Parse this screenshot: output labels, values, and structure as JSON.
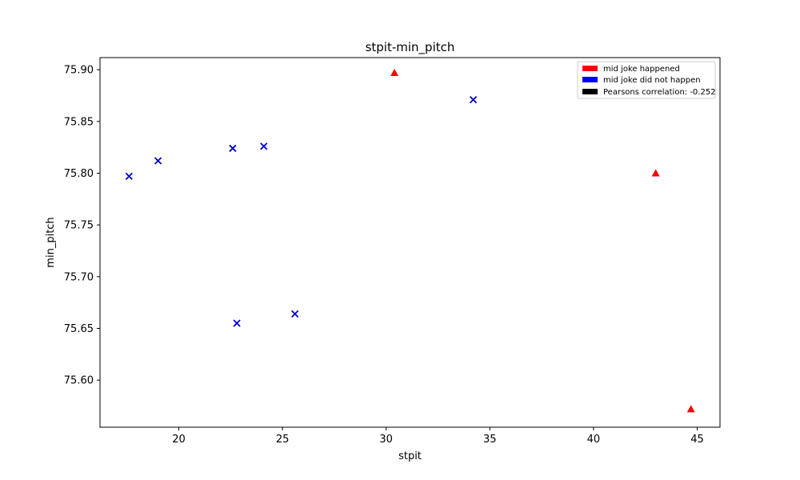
{
  "chart_data": {
    "type": "scatter",
    "title": "stpit-min_pitch",
    "xlabel": "stpit",
    "ylabel": "min_pitch",
    "xlim": [
      16.2,
      46.1
    ],
    "ylim": [
      75.5545,
      75.9117
    ],
    "xticks": [
      20,
      25,
      30,
      35,
      40,
      45
    ],
    "yticks": [
      75.6,
      75.65,
      75.7,
      75.75,
      75.8,
      75.85,
      75.9
    ],
    "grid": false,
    "legend_position": "top-right",
    "legend": [
      {
        "label": "mid joke happened",
        "color": "#ff0000"
      },
      {
        "label": "mid joke did not happen",
        "color": "#0000ff"
      },
      {
        "label": "Pearsons correlation: -0.252",
        "color": "#000000"
      }
    ],
    "series": [
      {
        "marker": "triangle",
        "color": "#ff0000",
        "points": [
          {
            "x": 30.4,
            "y": 75.897
          },
          {
            "x": 43.0,
            "y": 75.8
          },
          {
            "x": 44.7,
            "y": 75.572
          }
        ]
      },
      {
        "marker": "x",
        "color": "#0000cc",
        "points": [
          {
            "x": 17.6,
            "y": 75.797
          },
          {
            "x": 19.0,
            "y": 75.812
          },
          {
            "x": 22.6,
            "y": 75.824
          },
          {
            "x": 24.1,
            "y": 75.826
          },
          {
            "x": 34.2,
            "y": 75.871
          },
          {
            "x": 22.8,
            "y": 75.655
          },
          {
            "x": 25.6,
            "y": 75.664
          }
        ]
      }
    ]
  }
}
